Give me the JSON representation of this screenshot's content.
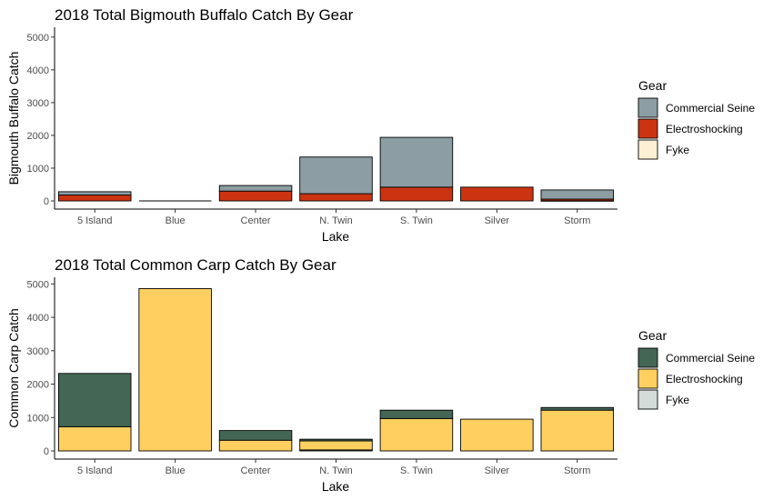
{
  "chart_data": [
    {
      "type": "bar",
      "stacked": true,
      "title": "2018 Total Bigmouth Buffalo Catch By Gear",
      "xlabel": "Lake",
      "ylabel": "Bigmouth Buffalo Catch",
      "categories": [
        "5 Island",
        "Blue",
        "Center",
        "N. Twin",
        "S. Twin",
        "Silver",
        "Storm"
      ],
      "ylim": [
        0,
        5300
      ],
      "yticks": [
        0,
        1000,
        2000,
        3000,
        4000,
        5000
      ],
      "legend_title": "Gear",
      "legend_position": "right",
      "grid": false,
      "series": [
        {
          "name": "Commercial Seine",
          "color": "#8c9ea4",
          "values": [
            100,
            0,
            170,
            1120,
            1520,
            0,
            280
          ]
        },
        {
          "name": "Electroshocking",
          "color": "#cc3311",
          "values": [
            180,
            0,
            300,
            220,
            420,
            420,
            50
          ]
        },
        {
          "name": "Fyke",
          "color": "#fdf0d5",
          "values": [
            0,
            0,
            0,
            0,
            0,
            0,
            5
          ]
        }
      ]
    },
    {
      "type": "bar",
      "stacked": true,
      "title": "2018 Total Common Carp Catch By Gear",
      "xlabel": "Lake",
      "ylabel": "Common Carp Catch",
      "categories": [
        "5 Island",
        "Blue",
        "Center",
        "N. Twin",
        "S. Twin",
        "Silver",
        "Storm"
      ],
      "ylim": [
        0,
        5200
      ],
      "yticks": [
        0,
        1000,
        2000,
        3000,
        4000,
        5000
      ],
      "legend_title": "Gear",
      "legend_position": "right",
      "grid": false,
      "series": [
        {
          "name": "Commercial Seine",
          "color": "#446655",
          "values": [
            1600,
            0,
            290,
            50,
            250,
            0,
            80
          ]
        },
        {
          "name": "Electroshocking",
          "color": "#ffd060",
          "values": [
            720,
            4860,
            320,
            270,
            970,
            950,
            1220
          ]
        },
        {
          "name": "Fyke",
          "color": "#d3dcd9",
          "values": [
            0,
            0,
            0,
            30,
            0,
            0,
            0
          ]
        }
      ]
    }
  ]
}
